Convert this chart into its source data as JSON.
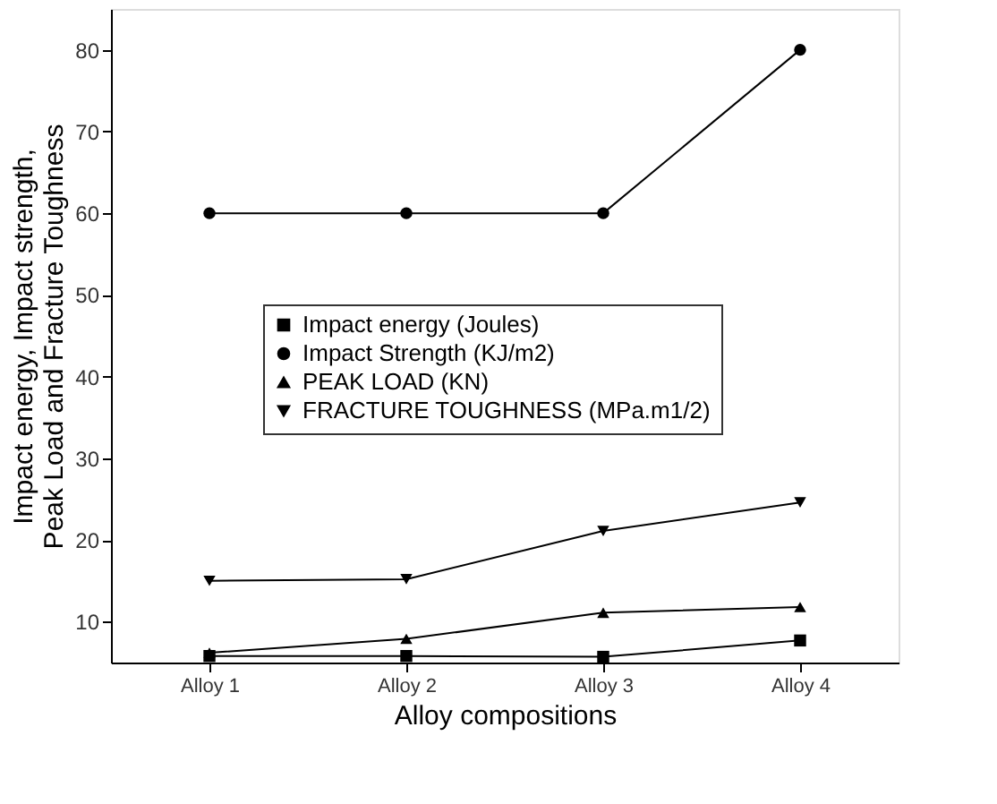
{
  "chart_data": {
    "type": "line",
    "xlabel": "Alloy compositions",
    "ylabel": "Impact energy, Impact strength,\nPeak Load and Fracture Toughness",
    "categories": [
      "Alloy 1",
      "Alloy 2",
      "Alloy 3",
      "Alloy 4"
    ],
    "ylim": [
      5,
      85
    ],
    "yticks": [
      10,
      20,
      30,
      40,
      50,
      60,
      70,
      80
    ],
    "grid": false,
    "legend": "right",
    "series": [
      {
        "name": "Impact energy (Joules)",
        "color": "#000000",
        "marker": "square",
        "values": [
          5.8,
          5.8,
          5.7,
          7.7
        ]
      },
      {
        "name": "Impact Strength (KJ/m2)",
        "color": "#000000",
        "marker": "circle",
        "values": [
          60,
          60,
          60,
          80
        ]
      },
      {
        "name": "PEAK LOAD (KN)",
        "color": "#000000",
        "marker": "triangle",
        "values": [
          6.2,
          7.9,
          11.1,
          11.8
        ]
      },
      {
        "name": "FRACTURE TOUGHNESS (MPa.m1/2)",
        "color": "#000000",
        "marker": "triangle-down",
        "values": [
          15,
          15.2,
          21.1,
          24.6
        ]
      }
    ]
  }
}
